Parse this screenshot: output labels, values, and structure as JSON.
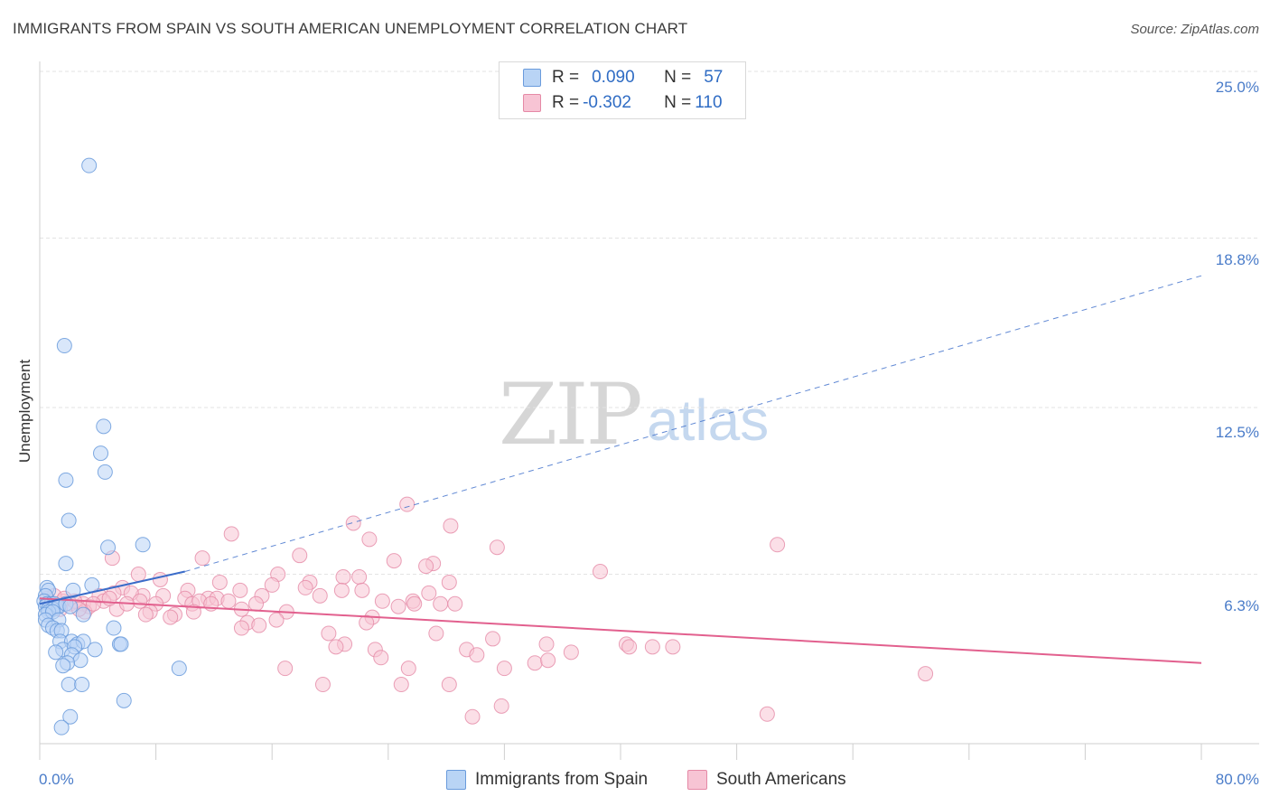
{
  "title": "IMMIGRANTS FROM SPAIN VS SOUTH AMERICAN UNEMPLOYMENT CORRELATION CHART",
  "source": "Source: ZipAtlas.com",
  "watermark": {
    "zip": "ZIP",
    "atlas": "atlas"
  },
  "legend": {
    "rows": [
      {
        "r_label": "R =",
        "r_value": "0.090",
        "n_label": "N =",
        "n_value": "57"
      },
      {
        "r_label": "R =",
        "r_value": "-0.302",
        "n_label": "N =",
        "n_value": "110"
      }
    ]
  },
  "bottom_legend": [
    "Immigrants from Spain",
    "South Americans"
  ],
  "colors": {
    "blue": "#6a9bdc",
    "blue_fill": "#b9d4f5",
    "pink": "#e589a6",
    "pink_fill": "#f7c4d4",
    "blue_line": "#3a6cc9",
    "pink_line": "#e2608e",
    "tick_text": "#4a7cc9"
  },
  "chart_data": {
    "type": "scatter",
    "title": "IMMIGRANTS FROM SPAIN VS SOUTH AMERICAN UNEMPLOYMENT CORRELATION CHART",
    "xlabel": "",
    "ylabel": "Unemployment",
    "xlim": [
      0,
      80
    ],
    "ylim": [
      0,
      25
    ],
    "x_tick_labels": [
      "0.0%",
      "80.0%"
    ],
    "y_tick_labels": [
      "25.0%",
      "18.8%",
      "12.5%",
      "6.3%"
    ],
    "y_ticks": [
      25.0,
      18.8,
      12.5,
      6.3
    ],
    "grid": true,
    "legend_position": "top-center",
    "series": [
      {
        "name": "Immigrants from Spain",
        "r": 0.09,
        "n": 57,
        "trend": {
          "x": [
            0,
            10
          ],
          "y": [
            5.2,
            6.4
          ],
          "dashed_extension": {
            "x": [
              10,
              80
            ],
            "y": [
              6.4,
              17.4
            ]
          }
        },
        "points": [
          [
            3.4,
            21.5
          ],
          [
            1.7,
            14.8
          ],
          [
            4.4,
            11.8
          ],
          [
            4.2,
            10.8
          ],
          [
            4.5,
            10.1
          ],
          [
            1.8,
            9.8
          ],
          [
            2.0,
            8.3
          ],
          [
            7.1,
            7.4
          ],
          [
            4.7,
            7.3
          ],
          [
            1.8,
            6.7
          ],
          [
            3.6,
            5.9
          ],
          [
            0.5,
            5.8
          ],
          [
            0.6,
            5.7
          ],
          [
            2.3,
            5.7
          ],
          [
            0.4,
            5.5
          ],
          [
            0.3,
            5.3
          ],
          [
            0.5,
            5.2
          ],
          [
            0.8,
            5.2
          ],
          [
            1.0,
            5.2
          ],
          [
            1.2,
            5.1
          ],
          [
            0.4,
            5.1
          ],
          [
            0.6,
            5.0
          ],
          [
            0.9,
            5.0
          ],
          [
            1.3,
            5.1
          ],
          [
            1.8,
            5.2
          ],
          [
            2.1,
            5.1
          ],
          [
            0.6,
            4.9
          ],
          [
            0.4,
            4.8
          ],
          [
            0.9,
            4.9
          ],
          [
            3.0,
            4.8
          ],
          [
            0.4,
            4.6
          ],
          [
            1.3,
            4.6
          ],
          [
            0.6,
            4.4
          ],
          [
            0.9,
            4.3
          ],
          [
            1.2,
            4.2
          ],
          [
            1.5,
            4.2
          ],
          [
            5.1,
            4.3
          ],
          [
            1.4,
            3.8
          ],
          [
            2.2,
            3.8
          ],
          [
            2.6,
            3.7
          ],
          [
            3.0,
            3.8
          ],
          [
            5.5,
            3.7
          ],
          [
            5.6,
            3.7
          ],
          [
            1.6,
            3.5
          ],
          [
            2.4,
            3.6
          ],
          [
            3.8,
            3.5
          ],
          [
            1.1,
            3.4
          ],
          [
            2.2,
            3.3
          ],
          [
            2.8,
            3.1
          ],
          [
            1.9,
            3.0
          ],
          [
            1.6,
            2.9
          ],
          [
            9.6,
            2.8
          ],
          [
            2.0,
            2.2
          ],
          [
            2.9,
            2.2
          ],
          [
            5.8,
            1.6
          ],
          [
            2.1,
            1.0
          ],
          [
            1.5,
            0.6
          ]
        ]
      },
      {
        "name": "South Americans",
        "r": -0.302,
        "n": 110,
        "trend": {
          "x": [
            0,
            80
          ],
          "y": [
            5.4,
            3.0
          ]
        },
        "points": [
          [
            25.3,
            8.9
          ],
          [
            21.6,
            8.2
          ],
          [
            28.3,
            8.1
          ],
          [
            13.2,
            7.8
          ],
          [
            22.7,
            7.6
          ],
          [
            31.5,
            7.3
          ],
          [
            50.8,
            7.4
          ],
          [
            5.0,
            6.9
          ],
          [
            11.2,
            6.9
          ],
          [
            17.9,
            7.0
          ],
          [
            24.4,
            6.8
          ],
          [
            27.1,
            6.7
          ],
          [
            26.6,
            6.6
          ],
          [
            38.6,
            6.4
          ],
          [
            6.8,
            6.3
          ],
          [
            8.3,
            6.1
          ],
          [
            16.4,
            6.3
          ],
          [
            20.9,
            6.2
          ],
          [
            22.0,
            6.2
          ],
          [
            12.4,
            6.0
          ],
          [
            16.0,
            5.9
          ],
          [
            18.6,
            6.0
          ],
          [
            28.2,
            6.0
          ],
          [
            5.7,
            5.8
          ],
          [
            10.2,
            5.7
          ],
          [
            13.8,
            5.7
          ],
          [
            18.3,
            5.8
          ],
          [
            20.8,
            5.7
          ],
          [
            22.2,
            5.7
          ],
          [
            26.8,
            5.6
          ],
          [
            5.1,
            5.6
          ],
          [
            7.1,
            5.5
          ],
          [
            4.1,
            5.5
          ],
          [
            6.3,
            5.6
          ],
          [
            8.5,
            5.5
          ],
          [
            10.0,
            5.4
          ],
          [
            11.6,
            5.4
          ],
          [
            12.2,
            5.4
          ],
          [
            15.3,
            5.5
          ],
          [
            19.3,
            5.5
          ],
          [
            23.6,
            5.3
          ],
          [
            25.7,
            5.3
          ],
          [
            4.4,
            5.3
          ],
          [
            6.9,
            5.3
          ],
          [
            8.0,
            5.2
          ],
          [
            10.5,
            5.2
          ],
          [
            11.0,
            5.3
          ],
          [
            11.8,
            5.2
          ],
          [
            13.0,
            5.3
          ],
          [
            14.9,
            5.2
          ],
          [
            24.7,
            5.1
          ],
          [
            25.8,
            5.2
          ],
          [
            27.6,
            5.2
          ],
          [
            28.6,
            5.2
          ],
          [
            1.6,
            5.3
          ],
          [
            2.1,
            5.2
          ],
          [
            3.0,
            5.2
          ],
          [
            3.4,
            5.1
          ],
          [
            5.3,
            5.0
          ],
          [
            7.6,
            4.9
          ],
          [
            9.3,
            4.8
          ],
          [
            10.6,
            4.9
          ],
          [
            13.9,
            5.0
          ],
          [
            17.0,
            4.9
          ],
          [
            3.1,
            4.9
          ],
          [
            7.3,
            4.8
          ],
          [
            9.0,
            4.7
          ],
          [
            22.9,
            4.7
          ],
          [
            16.3,
            4.6
          ],
          [
            14.3,
            4.5
          ],
          [
            15.1,
            4.4
          ],
          [
            22.5,
            4.5
          ],
          [
            13.9,
            4.3
          ],
          [
            19.9,
            4.1
          ],
          [
            27.3,
            4.1
          ],
          [
            31.2,
            3.9
          ],
          [
            21.0,
            3.7
          ],
          [
            34.9,
            3.7
          ],
          [
            40.4,
            3.7
          ],
          [
            40.6,
            3.6
          ],
          [
            42.2,
            3.6
          ],
          [
            43.6,
            3.6
          ],
          [
            23.1,
            3.5
          ],
          [
            20.4,
            3.6
          ],
          [
            29.4,
            3.5
          ],
          [
            36.6,
            3.4
          ],
          [
            30.1,
            3.3
          ],
          [
            23.5,
            3.2
          ],
          [
            34.1,
            3.0
          ],
          [
            35.0,
            3.1
          ],
          [
            16.9,
            2.8
          ],
          [
            25.4,
            2.8
          ],
          [
            32.0,
            2.8
          ],
          [
            28.2,
            2.2
          ],
          [
            24.9,
            2.2
          ],
          [
            19.5,
            2.2
          ],
          [
            61.0,
            2.6
          ],
          [
            31.8,
            1.4
          ],
          [
            29.8,
            1.0
          ],
          [
            50.1,
            1.1
          ],
          [
            0.5,
            5.4
          ],
          [
            1.0,
            5.5
          ],
          [
            1.7,
            5.4
          ],
          [
            2.4,
            5.3
          ],
          [
            0.8,
            5.1
          ],
          [
            1.4,
            5.0
          ],
          [
            2.7,
            5.0
          ],
          [
            3.7,
            5.2
          ],
          [
            6.0,
            5.2
          ],
          [
            4.8,
            5.4
          ]
        ]
      }
    ]
  }
}
